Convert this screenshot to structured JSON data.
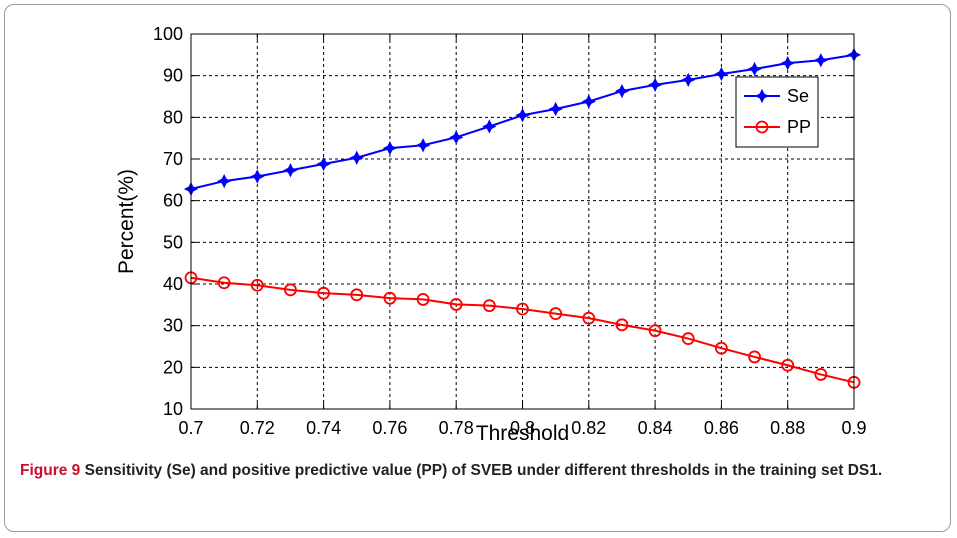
{
  "chart_data": {
    "type": "line",
    "xlabel": "Threshold",
    "ylabel": "Percent(%)",
    "xlim": [
      0.7,
      0.9
    ],
    "ylim": [
      10,
      100
    ],
    "x_ticks": [
      "0.7",
      "0.72",
      "0.74",
      "0.76",
      "0.78",
      "0.8",
      "0.82",
      "0.84",
      "0.86",
      "0.88",
      "0.9"
    ],
    "y_ticks": [
      "10",
      "20",
      "30",
      "40",
      "50",
      "60",
      "70",
      "80",
      "90",
      "100"
    ],
    "grid": true,
    "legend_position": "top-right",
    "x": [
      0.7,
      0.71,
      0.72,
      0.73,
      0.74,
      0.75,
      0.76,
      0.77,
      0.78,
      0.79,
      0.8,
      0.81,
      0.82,
      0.83,
      0.84,
      0.85,
      0.86,
      0.87,
      0.88,
      0.89,
      0.9
    ],
    "series": [
      {
        "name": "Se",
        "color": "#0000ff",
        "marker": "star",
        "values": [
          62.8,
          64.7,
          65.8,
          67.3,
          68.8,
          70.3,
          72.6,
          73.3,
          75.2,
          77.8,
          80.5,
          82.0,
          83.8,
          86.3,
          87.8,
          89.0,
          90.4,
          91.6,
          93.0,
          93.7,
          95.0
        ]
      },
      {
        "name": "PP",
        "color": "#ff0000",
        "marker": "circle",
        "values": [
          41.5,
          40.3,
          39.7,
          38.6,
          37.8,
          37.4,
          36.6,
          36.3,
          35.1,
          34.8,
          34.0,
          32.9,
          31.8,
          30.2,
          28.8,
          26.9,
          24.6,
          22.5,
          20.5,
          18.3,
          16.4
        ]
      }
    ]
  },
  "caption": {
    "label": "Figure 9",
    "text": "Sensitivity (Se) and positive predictive value (PP) of SVEB under different thresholds in the training set DS1."
  }
}
